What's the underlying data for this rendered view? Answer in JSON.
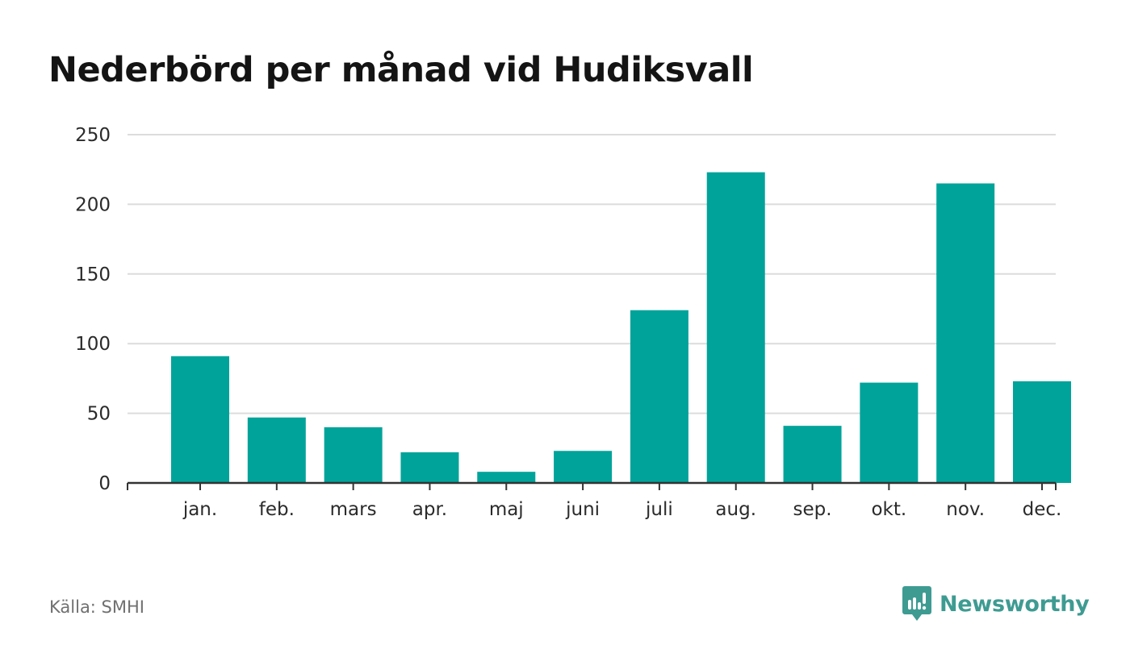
{
  "chart_data": {
    "type": "bar",
    "title": "Nederbörd per månad vid Hudiksvall",
    "categories": [
      "jan.",
      "feb.",
      "mars",
      "apr.",
      "maj",
      "juni",
      "juli",
      "aug.",
      "sep.",
      "okt.",
      "nov.",
      "dec."
    ],
    "values": [
      91,
      47,
      40,
      22,
      8,
      23,
      124,
      223,
      41,
      72,
      215,
      73
    ],
    "ylim": [
      0,
      250
    ],
    "yticks": [
      0,
      50,
      100,
      150,
      200,
      250
    ],
    "xlabel": "",
    "ylabel": "",
    "grid": true,
    "legend": "none",
    "color": "#00a39a"
  },
  "footer": {
    "source": "Källa: SMHI",
    "brand": "Newsworthy"
  },
  "colors": {
    "bar": "#00a39a",
    "grid": "#dcdcdc",
    "axis": "#333333",
    "brand": "#3e9b92"
  }
}
